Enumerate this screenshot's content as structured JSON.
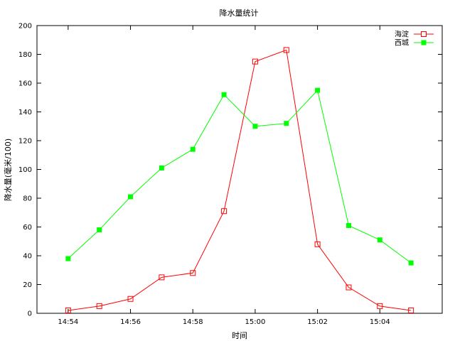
{
  "chart_data": {
    "type": "line",
    "title": "降水量统计",
    "xlabel": "时间",
    "ylabel": "降水量(毫米/100)",
    "x": [
      "14:54",
      "14:55",
      "14:56",
      "14:57",
      "14:58",
      "14:59",
      "15:00",
      "15:01",
      "15:02",
      "15:03",
      "15:04",
      "15:05"
    ],
    "xlim": [
      "14:53",
      "15:06"
    ],
    "x_tick_labels": [
      "14:54",
      "14:56",
      "14:58",
      "15:00",
      "15:02",
      "15:04"
    ],
    "ylim": [
      0,
      200
    ],
    "y_ticks": [
      0,
      20,
      40,
      60,
      80,
      100,
      120,
      140,
      160,
      180,
      200
    ],
    "grid": false,
    "legend_position": "top-right",
    "series": [
      {
        "name": "海淀",
        "color": "#ff0000",
        "marker": "open-square",
        "values": [
          2,
          5,
          10,
          25,
          28,
          71,
          175,
          183,
          48,
          18,
          5,
          2
        ]
      },
      {
        "name": "西城",
        "color": "#00ff00",
        "marker": "filled-square",
        "values": [
          38,
          58,
          81,
          101,
          114,
          152,
          130,
          132,
          155,
          61,
          51,
          35
        ]
      }
    ]
  }
}
